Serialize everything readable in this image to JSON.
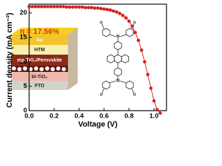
{
  "chart_data": {
    "type": "line",
    "x_label": "Voltage (V)",
    "y_label": "Current density (mA cm⁻²)",
    "annotations": {
      "efficiency": "η = 17.56%",
      "layers": [
        "Au",
        "HTM",
        "mp-TiO₂/Perovskite",
        "bl-TiO₂",
        "FTO"
      ]
    },
    "x": [
      0,
      0.025,
      0.05,
      0.075,
      0.1,
      0.125,
      0.15,
      0.175,
      0.2,
      0.225,
      0.25,
      0.275,
      0.3,
      0.325,
      0.35,
      0.375,
      0.4,
      0.425,
      0.45,
      0.475,
      0.5,
      0.525,
      0.55,
      0.575,
      0.6,
      0.625,
      0.65,
      0.675,
      0.7,
      0.725,
      0.75,
      0.775,
      0.8,
      0.825,
      0.85,
      0.875,
      0.9,
      0.925,
      0.95,
      0.975,
      1.0,
      1.025,
      1.05
    ],
    "values": [
      21.3,
      21.3,
      21.3,
      21.3,
      21.3,
      21.3,
      21.3,
      21.3,
      21.3,
      21.3,
      21.3,
      21.3,
      21.2,
      21.2,
      21.2,
      21.2,
      21.2,
      21.2,
      21.1,
      21.1,
      21.1,
      21.0,
      21.0,
      20.9,
      20.8,
      20.7,
      20.6,
      20.4,
      20.2,
      19.9,
      19.5,
      19.0,
      18.3,
      17.3,
      16.0,
      14.4,
      12.4,
      10.0,
      7.4,
      4.6,
      2.0,
      0.2,
      -0.5
    ],
    "color": "#e02020",
    "xlim": [
      0,
      1.1
    ],
    "xticks": [
      {
        "value": 0,
        "label": "0.0"
      },
      0.2,
      0.4,
      0.6,
      0.8,
      {
        "value": 1,
        "label": "1.0"
      }
    ],
    "ylim": [
      0,
      21.8
    ],
    "yticks": [
      0,
      5,
      10,
      15,
      20
    ],
    "grid": false
  }
}
